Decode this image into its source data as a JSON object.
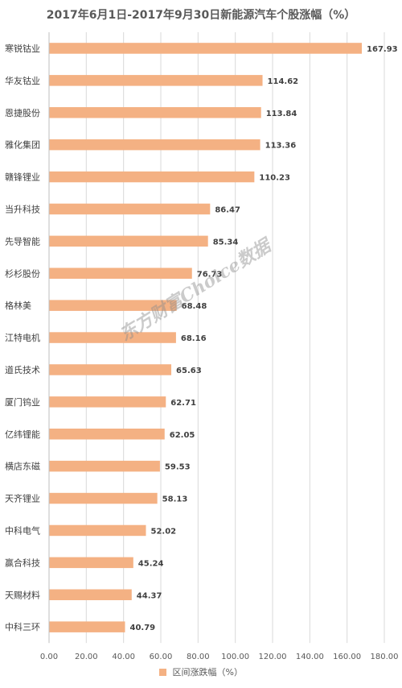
{
  "chart_data": {
    "type": "bar",
    "orientation": "horizontal",
    "title": "2017年6月1日-2017年9月30日新能源汽车个股涨幅（%）",
    "categories": [
      "寒锐钴业",
      "华友钴业",
      "恩捷股份",
      "雅化集团",
      "赣锋锂业",
      "当升科技",
      "先导智能",
      "杉杉股份",
      "格林美",
      "江特电机",
      "道氏技术",
      "厦门钨业",
      "亿纬锂能",
      "横店东磁",
      "天齐锂业",
      "中科电气",
      "赢合科技",
      "天赐材料",
      "中科三环"
    ],
    "series": [
      {
        "name": "区间涨跌幅（%）",
        "values": [
          167.93,
          114.62,
          113.84,
          113.36,
          110.23,
          86.47,
          85.34,
          76.73,
          68.48,
          68.16,
          65.63,
          62.71,
          62.05,
          59.53,
          58.13,
          52.02,
          45.24,
          44.37,
          40.79
        ],
        "labels": [
          "167.93",
          "114.62",
          "113.84",
          "113.36",
          "110.23",
          "86.47",
          "85.34",
          "76.73",
          "68.48",
          "68.16",
          "65.63",
          "62.71",
          "62.05",
          "59.53",
          "58.13",
          "52.02",
          "45.24",
          "44.37",
          "40.79"
        ]
      }
    ],
    "xlim": [
      0,
      180
    ],
    "x_ticks": [
      "0.00",
      "20.00",
      "40.00",
      "60.00",
      "80.00",
      "100.00",
      "120.00",
      "140.00",
      "160.00",
      "180.00"
    ],
    "grid": true,
    "legend_position": "bottom",
    "bar_color": "#F4B183"
  },
  "watermark": "东方财富Choice数据"
}
